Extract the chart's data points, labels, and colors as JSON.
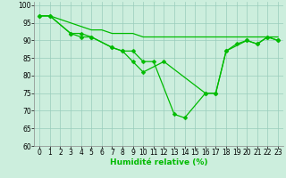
{
  "x": [
    0,
    1,
    2,
    3,
    4,
    5,
    6,
    7,
    8,
    9,
    10,
    11,
    12,
    13,
    14,
    15,
    16,
    17,
    18,
    19,
    20,
    21,
    22,
    23
  ],
  "line1": [
    97,
    97,
    null,
    92,
    91,
    91,
    null,
    88,
    87,
    84,
    81,
    null,
    84,
    null,
    null,
    null,
    75,
    75,
    87,
    89,
    90,
    89,
    91,
    90
  ],
  "line2": [
    97,
    97,
    null,
    92,
    92,
    91,
    null,
    88,
    87,
    87,
    84,
    84,
    null,
    69,
    68,
    null,
    75,
    75,
    87,
    null,
    90,
    89,
    91,
    90
  ],
  "line3": [
    97,
    97,
    96,
    95,
    94,
    93,
    93,
    92,
    92,
    92,
    91,
    91,
    91,
    91,
    91,
    91,
    91,
    91,
    91,
    91,
    91,
    91,
    91,
    91
  ],
  "background_color": "#cceedd",
  "grid_color": "#99ccbb",
  "line_color": "#00bb00",
  "marker": "D",
  "marker_size": 2.5,
  "xlabel": "Humidité relative (%)",
  "ylim": [
    60,
    101
  ],
  "xlim": [
    -0.5,
    23.5
  ],
  "yticks": [
    60,
    65,
    70,
    75,
    80,
    85,
    90,
    95,
    100
  ],
  "xticks": [
    0,
    1,
    2,
    3,
    4,
    5,
    6,
    7,
    8,
    9,
    10,
    11,
    12,
    13,
    14,
    15,
    16,
    17,
    18,
    19,
    20,
    21,
    22,
    23
  ],
  "axis_fontsize": 5.5,
  "xlabel_fontsize": 6.5
}
